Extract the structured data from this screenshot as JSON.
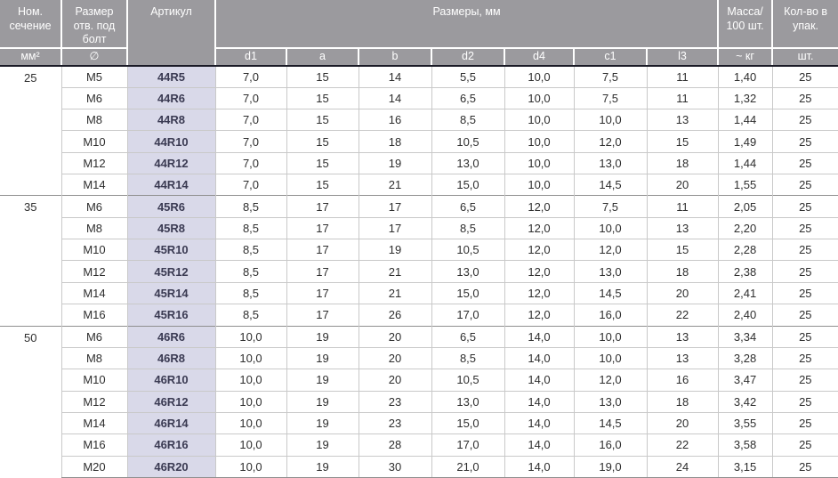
{
  "header": {
    "nom_title": "Ном. сечение",
    "nom_unit": "мм²",
    "bolt_title": "Размер отв. под болт",
    "bolt_unit": "∅",
    "article_title": "Артикул",
    "dims_title": "Размеры, мм",
    "dims": [
      "d1",
      "a",
      "b",
      "d2",
      "d4",
      "c1",
      "l3"
    ],
    "mass_title": "Масса/ 100 шт.",
    "mass_unit": "~ кг",
    "qty_title": "Кол-во в упак.",
    "qty_unit": "шт."
  },
  "colors": {
    "header_bg": "#9b9a9e",
    "article_bg": "#d9d9e9",
    "row_line": "#c9c9c9",
    "group_line": "#8f8f8f",
    "header_divider": "#1a1a26",
    "body_text": "#2e2e2e",
    "article_text": "#3a3a52"
  },
  "groups": [
    {
      "section": "25",
      "rows": [
        {
          "bolt": "M5",
          "article": "44R5",
          "dims": [
            "7,0",
            "15",
            "14",
            "5,5",
            "10,0",
            "7,5",
            "11"
          ],
          "mass": "1,40",
          "qty": "25"
        },
        {
          "bolt": "M6",
          "article": "44R6",
          "dims": [
            "7,0",
            "15",
            "14",
            "6,5",
            "10,0",
            "7,5",
            "11"
          ],
          "mass": "1,32",
          "qty": "25"
        },
        {
          "bolt": "M8",
          "article": "44R8",
          "dims": [
            "7,0",
            "15",
            "16",
            "8,5",
            "10,0",
            "10,0",
            "13"
          ],
          "mass": "1,44",
          "qty": "25"
        },
        {
          "bolt": "M10",
          "article": "44R10",
          "dims": [
            "7,0",
            "15",
            "18",
            "10,5",
            "10,0",
            "12,0",
            "15"
          ],
          "mass": "1,49",
          "qty": "25"
        },
        {
          "bolt": "M12",
          "article": "44R12",
          "dims": [
            "7,0",
            "15",
            "19",
            "13,0",
            "10,0",
            "13,0",
            "18"
          ],
          "mass": "1,44",
          "qty": "25"
        },
        {
          "bolt": "M14",
          "article": "44R14",
          "dims": [
            "7,0",
            "15",
            "21",
            "15,0",
            "10,0",
            "14,5",
            "20"
          ],
          "mass": "1,55",
          "qty": "25"
        }
      ]
    },
    {
      "section": "35",
      "rows": [
        {
          "bolt": "M6",
          "article": "45R6",
          "dims": [
            "8,5",
            "17",
            "17",
            "6,5",
            "12,0",
            "7,5",
            "11"
          ],
          "mass": "2,05",
          "qty": "25"
        },
        {
          "bolt": "M8",
          "article": "45R8",
          "dims": [
            "8,5",
            "17",
            "17",
            "8,5",
            "12,0",
            "10,0",
            "13"
          ],
          "mass": "2,20",
          "qty": "25"
        },
        {
          "bolt": "M10",
          "article": "45R10",
          "dims": [
            "8,5",
            "17",
            "19",
            "10,5",
            "12,0",
            "12,0",
            "15"
          ],
          "mass": "2,28",
          "qty": "25"
        },
        {
          "bolt": "M12",
          "article": "45R12",
          "dims": [
            "8,5",
            "17",
            "21",
            "13,0",
            "12,0",
            "13,0",
            "18"
          ],
          "mass": "2,38",
          "qty": "25"
        },
        {
          "bolt": "M14",
          "article": "45R14",
          "dims": [
            "8,5",
            "17",
            "21",
            "15,0",
            "12,0",
            "14,5",
            "20"
          ],
          "mass": "2,41",
          "qty": "25"
        },
        {
          "bolt": "M16",
          "article": "45R16",
          "dims": [
            "8,5",
            "17",
            "26",
            "17,0",
            "12,0",
            "16,0",
            "22"
          ],
          "mass": "2,40",
          "qty": "25"
        }
      ]
    },
    {
      "section": "50",
      "rows": [
        {
          "bolt": "M6",
          "article": "46R6",
          "dims": [
            "10,0",
            "19",
            "20",
            "6,5",
            "14,0",
            "10,0",
            "13"
          ],
          "mass": "3,34",
          "qty": "25"
        },
        {
          "bolt": "M8",
          "article": "46R8",
          "dims": [
            "10,0",
            "19",
            "20",
            "8,5",
            "14,0",
            "10,0",
            "13"
          ],
          "mass": "3,28",
          "qty": "25"
        },
        {
          "bolt": "M10",
          "article": "46R10",
          "dims": [
            "10,0",
            "19",
            "20",
            "10,5",
            "14,0",
            "12,0",
            "16"
          ],
          "mass": "3,47",
          "qty": "25"
        },
        {
          "bolt": "M12",
          "article": "46R12",
          "dims": [
            "10,0",
            "19",
            "23",
            "13,0",
            "14,0",
            "13,0",
            "18"
          ],
          "mass": "3,42",
          "qty": "25"
        },
        {
          "bolt": "M14",
          "article": "46R14",
          "dims": [
            "10,0",
            "19",
            "23",
            "15,0",
            "14,0",
            "14,5",
            "20"
          ],
          "mass": "3,55",
          "qty": "25"
        },
        {
          "bolt": "M16",
          "article": "46R16",
          "dims": [
            "10,0",
            "19",
            "28",
            "17,0",
            "14,0",
            "16,0",
            "22"
          ],
          "mass": "3,58",
          "qty": "25"
        },
        {
          "bolt": "M20",
          "article": "46R20",
          "dims": [
            "10,0",
            "19",
            "30",
            "21,0",
            "14,0",
            "19,0",
            "24"
          ],
          "mass": "3,15",
          "qty": "25"
        }
      ]
    }
  ]
}
